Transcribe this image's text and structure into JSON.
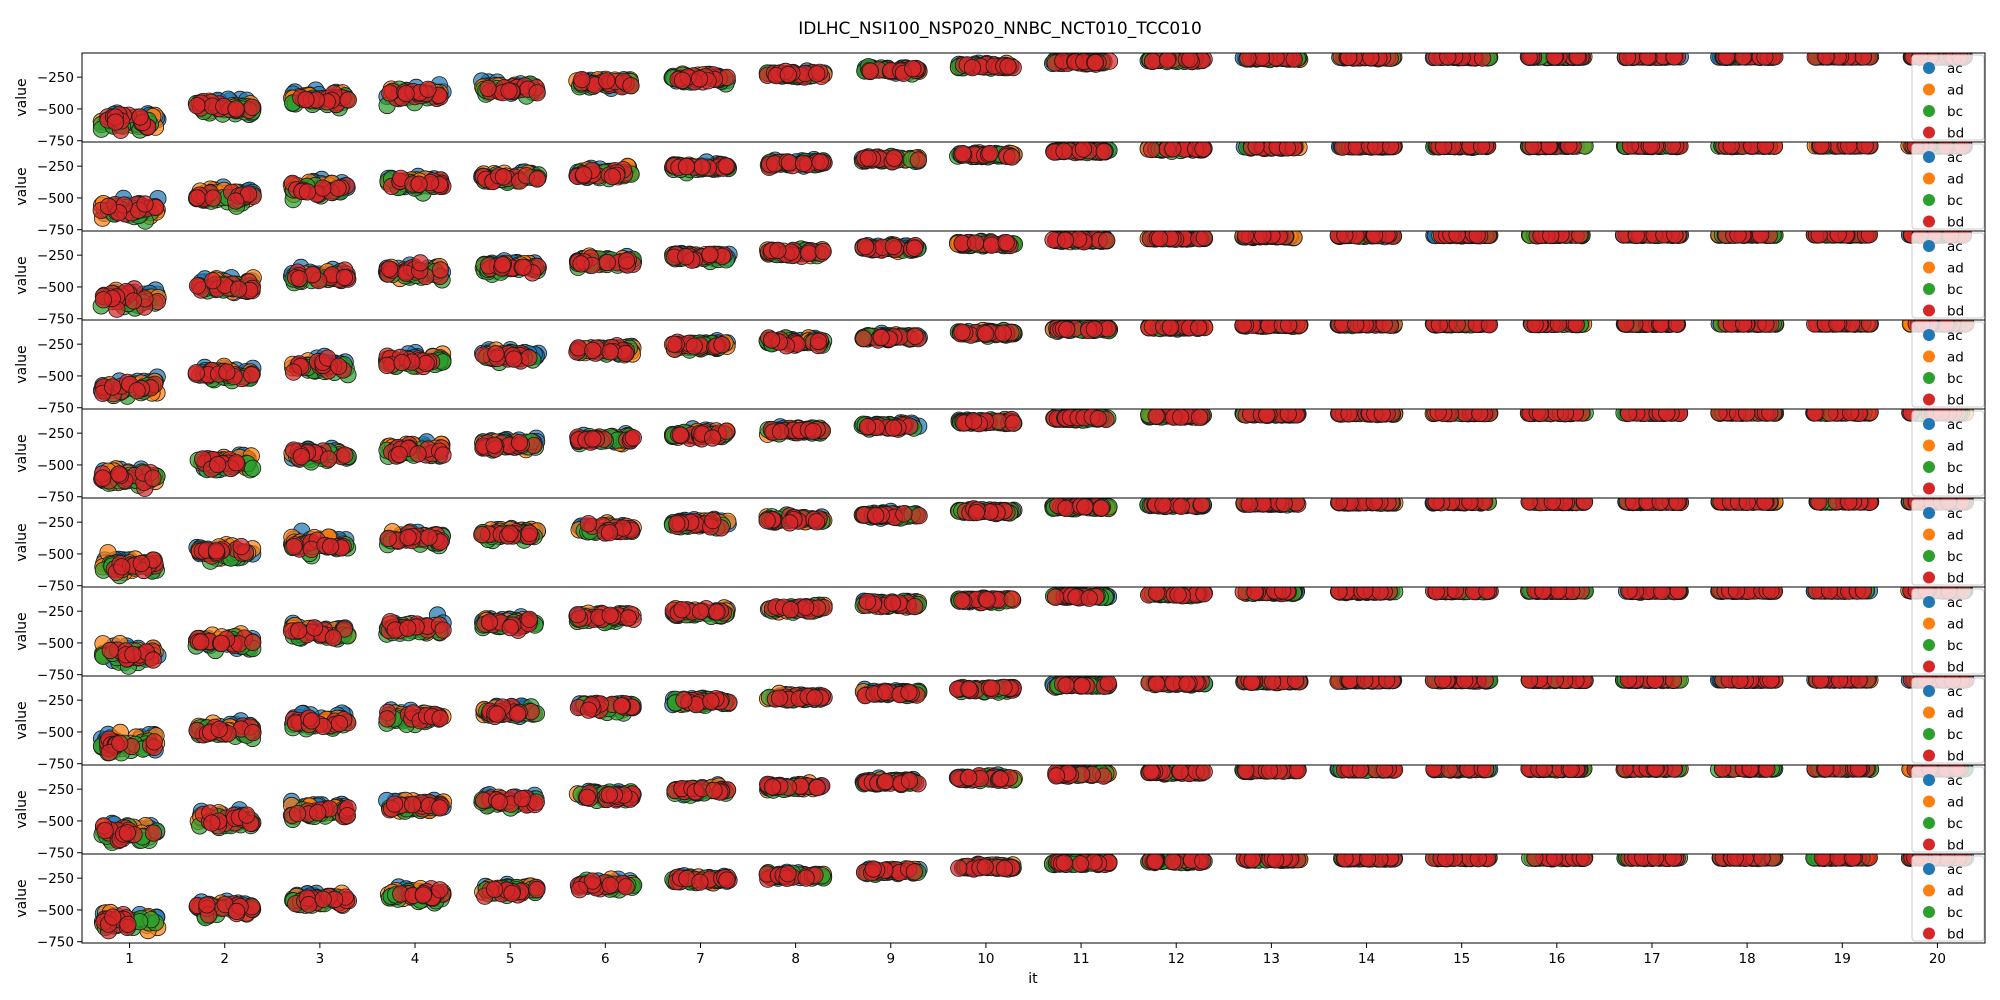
{
  "chart_data": {
    "type": "scatter",
    "title": "IDLHC_NSI100_NSP020_NNBC_NCT010_TCC010",
    "xlabel": "it",
    "ylabel": "value",
    "x_ticks": [
      1,
      2,
      3,
      4,
      5,
      6,
      7,
      8,
      9,
      10,
      11,
      12,
      13,
      14,
      15,
      16,
      17,
      18,
      19,
      20
    ],
    "xlim": [
      0.5,
      20.5
    ],
    "ylim": [
      -760,
      -60
    ],
    "y_ticks": [
      -250,
      -500,
      -750
    ],
    "grid": false,
    "legend_location": "right",
    "series": [
      {
        "name": "ac",
        "color": "#1f77b4"
      },
      {
        "name": "ad",
        "color": "#ff7f0e"
      },
      {
        "name": "bc",
        "color": "#2ca02c"
      },
      {
        "name": "bd",
        "color": "#d62728"
      }
    ],
    "panel_count": 10,
    "points_per_group": 16,
    "spread_half_width": 0.3,
    "group_means": {
      "ac": [
        -570,
        -470,
        -400,
        -370,
        -330,
        -290,
        -255,
        -225,
        -190,
        -160,
        -130,
        -115,
        -100,
        -95,
        -93,
        -92,
        -91,
        -91,
        -90,
        -90
      ],
      "ad": [
        -590,
        -480,
        -410,
        -375,
        -335,
        -295,
        -258,
        -228,
        -195,
        -162,
        -132,
        -116,
        -101,
        -95,
        -93,
        -92,
        -91,
        -91,
        -90,
        -90
      ],
      "bc": [
        -610,
        -510,
        -440,
        -400,
        -355,
        -310,
        -268,
        -232,
        -198,
        -165,
        -133,
        -117,
        -102,
        -96,
        -93,
        -92,
        -91,
        -91,
        -90,
        -90
      ],
      "bd": [
        -595,
        -490,
        -425,
        -385,
        -350,
        -305,
        -262,
        -230,
        -196,
        -163,
        -132,
        -116,
        -101,
        -95,
        -93,
        -92,
        -91,
        -91,
        -90,
        -90
      ]
    },
    "group_spread": [
      55,
      45,
      40,
      38,
      33,
      30,
      25,
      22,
      18,
      15,
      12,
      10,
      8,
      6,
      5,
      4,
      4,
      3,
      3,
      3
    ]
  }
}
